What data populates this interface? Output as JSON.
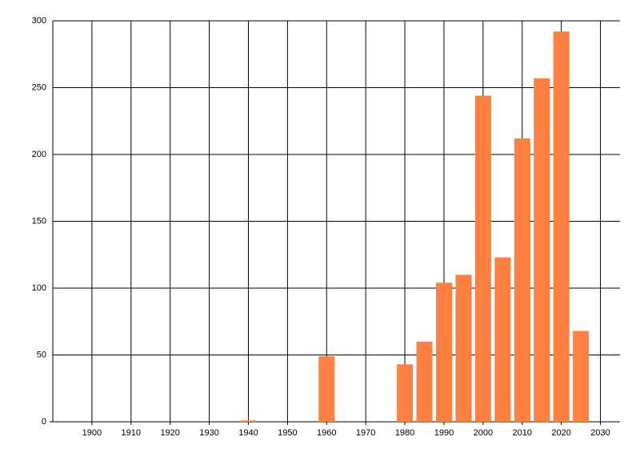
{
  "chart_data": {
    "type": "bar",
    "x": [
      1940,
      1960,
      1980,
      1985,
      1990,
      1995,
      2000,
      2005,
      2010,
      2015,
      2020,
      2025
    ],
    "values": [
      1,
      49,
      43,
      60,
      104,
      110,
      244,
      123,
      212,
      257,
      292,
      68
    ],
    "color": "#ff8040",
    "xlim": [
      1890,
      2035
    ],
    "xticks": [
      1900,
      1910,
      1920,
      1930,
      1940,
      1950,
      1960,
      1970,
      1980,
      1990,
      2000,
      2010,
      2020,
      2030
    ],
    "ylim": [
      0,
      300
    ],
    "yticks": [
      0,
      50,
      100,
      150,
      200,
      250,
      300
    ],
    "grid": true
  }
}
